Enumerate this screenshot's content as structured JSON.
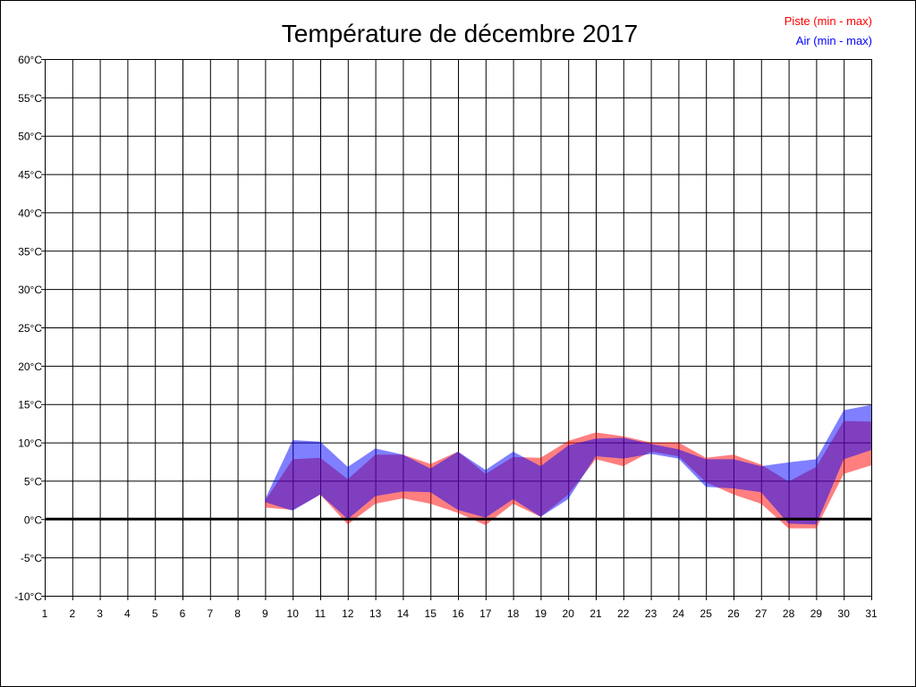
{
  "chart_data": {
    "type": "area",
    "title": "Température de décembre 2017",
    "xlabel": "",
    "ylabel": "",
    "x": [
      1,
      2,
      3,
      4,
      5,
      6,
      7,
      8,
      9,
      10,
      11,
      12,
      13,
      14,
      15,
      16,
      17,
      18,
      19,
      20,
      21,
      22,
      23,
      24,
      25,
      26,
      27,
      28,
      29,
      30,
      31
    ],
    "x_tick_labels": [
      "1",
      "2",
      "3",
      "4",
      "5",
      "6",
      "7",
      "8",
      "9",
      "10",
      "11",
      "12",
      "13",
      "14",
      "15",
      "16",
      "17",
      "18",
      "19",
      "20",
      "21",
      "22",
      "23",
      "24",
      "25",
      "26",
      "27",
      "28",
      "29",
      "30",
      "31"
    ],
    "ylim": [
      -10,
      60
    ],
    "y_ticks": [
      -10,
      -5,
      0,
      5,
      10,
      15,
      20,
      25,
      30,
      35,
      40,
      45,
      50,
      55,
      60
    ],
    "y_tick_labels": [
      "-10°C",
      "-5°C",
      "0°C",
      "5°C",
      "10°C",
      "15°C",
      "20°C",
      "25°C",
      "30°C",
      "35°C",
      "40°C",
      "45°C",
      "50°C",
      "55°C",
      "60°C"
    ],
    "grid": true,
    "zero_line": true,
    "legend_position": "top-right",
    "series": [
      {
        "name": "Piste (min - max)",
        "color": "#ff0000",
        "days": [
          9,
          10,
          11,
          12,
          13,
          14,
          15,
          16,
          17,
          18,
          19,
          20,
          21,
          22,
          23,
          24,
          25,
          26,
          27,
          28,
          29,
          30,
          31
        ],
        "min": [
          1.5,
          1.2,
          3.2,
          -0.7,
          2.0,
          2.7,
          2.0,
          0.8,
          -0.8,
          2.0,
          0.3,
          3.2,
          7.8,
          6.9,
          8.8,
          8.2,
          4.8,
          3.2,
          2.0,
          -1.2,
          -1.2,
          5.9,
          7.0
        ],
        "max": [
          2.4,
          7.8,
          8.0,
          5.2,
          8.4,
          8.4,
          7.2,
          8.8,
          5.9,
          8.1,
          8.0,
          10.2,
          11.3,
          10.8,
          10.0,
          10.0,
          8.0,
          8.4,
          7.1,
          4.9,
          6.8,
          12.8,
          12.7
        ]
      },
      {
        "name": "Air (min - max)",
        "color": "#0000ff",
        "days": [
          9,
          10,
          11,
          12,
          13,
          14,
          15,
          16,
          17,
          18,
          19,
          20,
          21,
          22,
          23,
          24,
          25,
          26,
          27,
          28,
          29,
          30,
          31
        ],
        "min": [
          2.2,
          1.1,
          3.2,
          0.0,
          3.0,
          3.6,
          3.5,
          1.2,
          0.2,
          2.6,
          0.3,
          2.6,
          8.2,
          7.9,
          8.5,
          7.9,
          4.2,
          4.0,
          3.5,
          -0.6,
          -0.7,
          7.8,
          9.0
        ],
        "max": [
          2.6,
          10.3,
          10.1,
          6.8,
          9.2,
          8.4,
          6.6,
          8.8,
          6.4,
          8.8,
          6.9,
          9.6,
          10.5,
          10.6,
          9.8,
          9.1,
          7.8,
          7.8,
          6.9,
          7.4,
          7.8,
          14.2,
          14.9
        ]
      }
    ]
  }
}
